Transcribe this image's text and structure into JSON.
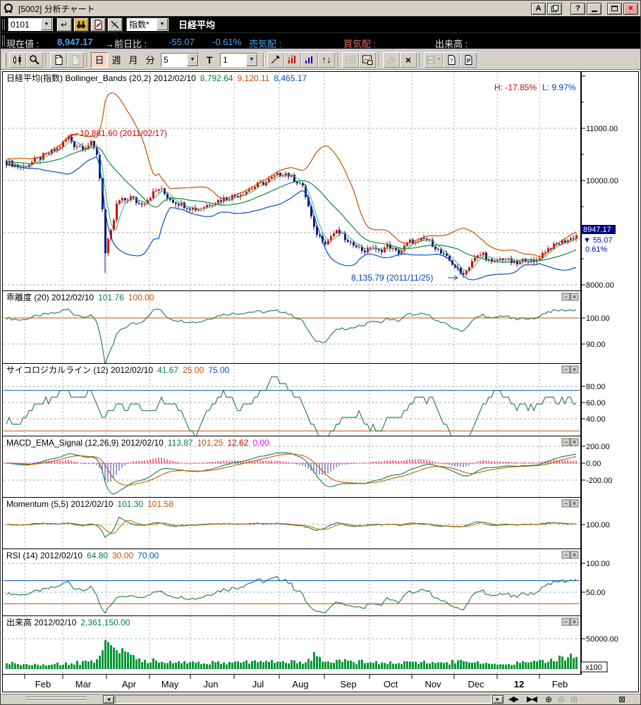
{
  "window": {
    "title": "[5002] 分析チャート",
    "buttons": {
      "a": "A",
      "help": "?",
      "close": "×"
    }
  },
  "icons": {
    "dropdown": "▼",
    "return": "↵",
    "updown": "↑↓",
    "left_arrow": "◄",
    "right_arrow": "►",
    "expand": "◀▶",
    "contract": "▶◀",
    "zoom_in": "⊕",
    "zoom_out": "⊖",
    "grid_box": "⊞",
    "close_box": "⊠",
    "minus": "−",
    "times": "×",
    "delete_x": "×"
  },
  "symbol_bar": {
    "code": "0101",
    "category": "指数*",
    "name": "日経平均"
  },
  "quote_bar": {
    "current_label": "現在値 :",
    "current_value": "8,947.17",
    "change_label": "→前日比 :",
    "change_value": "-55.07",
    "change_pct": "-0.61%",
    "ask_label": "売気配 :",
    "bid_label": "買気配 :",
    "volume_label": "出来高 :"
  },
  "toolbar": {
    "period_day": "日",
    "period_week": "週",
    "period_month": "月",
    "period_minute": "分",
    "bars_combo": "5",
    "text_button": "T",
    "interval_combo": "1"
  },
  "colors": {
    "up": "#cc1111",
    "down": "#15157a",
    "band_upper": "#c85000",
    "band_mid": "#0b8a3c",
    "band_fast": "#3cb06a",
    "band_lower": "#0050c0",
    "indicator": "#1a7a4a",
    "signal": "#c06000",
    "hist_pos": "#cc0000",
    "hist_neg": "#3a3aa0",
    "zero": "#ff00ff",
    "volume": "#009933",
    "grid": "#b0b0b0",
    "accent_cyan": "#3fa9f5",
    "bid_red": "#f06a6a"
  },
  "months": [
    "Feb",
    "Mar",
    "Apr",
    "May",
    "Jun",
    "Jul",
    "Aug",
    "Sep",
    "Oct",
    "Nov",
    "Dec",
    "12",
    "Feb"
  ],
  "chart_data": [
    {
      "type": "candlestick",
      "name": "main",
      "header_parts": [
        [
          "日経平均(指数) Bollinger_Bands (20,2) 2012/02/10",
          "#000000"
        ],
        [
          "8,792.64",
          "#008040"
        ],
        [
          "9,120.11",
          "#c85000"
        ],
        [
          "8,465.17",
          "#0050c0"
        ]
      ],
      "yticks": [
        {
          "v": 11000,
          "label": "11000.00"
        },
        {
          "v": 10000,
          "label": "10000.00"
        },
        {
          "v": 9000,
          "label": "9000.00"
        },
        {
          "v": 8000,
          "label": "8000.00"
        }
      ],
      "ylim": [
        7890,
        11880
      ],
      "bollinger": {
        "period": 20,
        "k": 2
      },
      "last_close": 8947.17,
      "high_annotation": {
        "text": "10,881.60 (2011/02/17)",
        "value": 10881.6,
        "color": "#cc0000"
      },
      "low_annotation": {
        "text": "8,135.79 (2011/11/25)",
        "value": 8135.79,
        "color": "#0040c0"
      },
      "range_labels": {
        "high": "H: -17.85%",
        "high_color": "#cc0000",
        "low": "L: 9.97%",
        "low_color": "#0040c0"
      },
      "price_box": {
        "price": "8947.17",
        "change": "▼ 55.07",
        "pct": "0.61%",
        "bg": "#000080",
        "fg": "#0000bb"
      },
      "close_anchors": [
        [
          8,
          10350
        ],
        [
          30,
          10250
        ],
        [
          55,
          10430
        ],
        [
          80,
          10600
        ],
        [
          92,
          10780
        ],
        [
          96,
          10820
        ],
        [
          104,
          10680
        ],
        [
          118,
          10650
        ],
        [
          128,
          10700
        ],
        [
          136,
          10520
        ],
        [
          140,
          10050
        ],
        [
          144,
          9480
        ],
        [
          148,
          8600
        ],
        [
          152,
          8830
        ],
        [
          158,
          9100
        ],
        [
          165,
          9600
        ],
        [
          175,
          9620
        ],
        [
          185,
          9680
        ],
        [
          195,
          9550
        ],
        [
          205,
          9600
        ],
        [
          215,
          9750
        ],
        [
          225,
          9850
        ],
        [
          235,
          9700
        ],
        [
          245,
          9600
        ],
        [
          255,
          9550
        ],
        [
          265,
          9500
        ],
        [
          275,
          9450
        ],
        [
          285,
          9480
        ],
        [
          295,
          9550
        ],
        [
          305,
          9600
        ],
        [
          315,
          9650
        ],
        [
          325,
          9680
        ],
        [
          335,
          9720
        ],
        [
          345,
          9780
        ],
        [
          355,
          9850
        ],
        [
          365,
          9920
        ],
        [
          375,
          9960
        ],
        [
          385,
          10050
        ],
        [
          395,
          10120
        ],
        [
          403,
          10150
        ],
        [
          410,
          10080
        ],
        [
          418,
          10000
        ],
        [
          426,
          9940
        ],
        [
          432,
          9700
        ],
        [
          438,
          9400
        ],
        [
          444,
          9070
        ],
        [
          450,
          8950
        ],
        [
          456,
          8870
        ],
        [
          462,
          8800
        ],
        [
          470,
          8980
        ],
        [
          478,
          9020
        ],
        [
          486,
          8920
        ],
        [
          494,
          8760
        ],
        [
          502,
          8800
        ],
        [
          510,
          8680
        ],
        [
          518,
          8640
        ],
        [
          526,
          8750
        ],
        [
          534,
          8620
        ],
        [
          542,
          8690
        ],
        [
          550,
          8760
        ],
        [
          558,
          8640
        ],
        [
          566,
          8620
        ],
        [
          574,
          8760
        ],
        [
          582,
          8850
        ],
        [
          590,
          8780
        ],
        [
          598,
          8880
        ],
        [
          606,
          8850
        ],
        [
          614,
          8760
        ],
        [
          622,
          8620
        ],
        [
          630,
          8540
        ],
        [
          638,
          8440
        ],
        [
          646,
          8320
        ],
        [
          652,
          8220
        ],
        [
          656,
          8160
        ],
        [
          662,
          8320
        ],
        [
          668,
          8460
        ],
        [
          676,
          8540
        ],
        [
          684,
          8600
        ],
        [
          690,
          8500
        ],
        [
          696,
          8420
        ],
        [
          702,
          8450
        ],
        [
          708,
          8490
        ],
        [
          714,
          8520
        ],
        [
          720,
          8460
        ],
        [
          726,
          8420
        ],
        [
          732,
          8400
        ],
        [
          738,
          8440
        ],
        [
          744,
          8500
        ],
        [
          750,
          8460
        ],
        [
          756,
          8420
        ],
        [
          762,
          8520
        ],
        [
          768,
          8600
        ],
        [
          774,
          8680
        ],
        [
          780,
          8720
        ],
        [
          786,
          8760
        ],
        [
          792,
          8800
        ],
        [
          798,
          8830
        ],
        [
          804,
          8860
        ],
        [
          810,
          8900
        ],
        [
          816,
          8947
        ]
      ]
    },
    {
      "type": "line",
      "name": "kairi",
      "header_parts": [
        [
          "乖離度 (20) 2012/02/10",
          "#000000"
        ],
        [
          "101.76",
          "#008040"
        ],
        [
          "100.00",
          "#c85000"
        ]
      ],
      "yticks": [
        {
          "v": 100,
          "label": "100.00"
        },
        {
          "v": 90,
          "label": "90.00"
        }
      ],
      "ref_lines": [
        {
          "v": 100,
          "color": "#c85000"
        }
      ]
    },
    {
      "type": "line",
      "name": "psych",
      "header_parts": [
        [
          "サイコロジカルライン (12) 2012/02/10",
          "#000000"
        ],
        [
          "41.67",
          "#008040"
        ],
        [
          "25.00",
          "#c85000"
        ],
        [
          "75.00",
          "#0050c0"
        ]
      ],
      "yticks": [
        {
          "v": 80,
          "label": "80.00"
        },
        {
          "v": 60,
          "label": "60.00"
        },
        {
          "v": 40,
          "label": "40.00"
        }
      ],
      "ref_lines": [
        {
          "v": 75,
          "color": "#0050c0"
        },
        {
          "v": 25,
          "color": "#c85000"
        }
      ]
    },
    {
      "type": "macd",
      "name": "macd",
      "header_parts": [
        [
          "MACD_EMA_Signal (12,26,9) 2012/02/10",
          "#000000"
        ],
        [
          "113.87",
          "#008040"
        ],
        [
          "101.25",
          "#c85000"
        ],
        [
          "12.62",
          "#cc0000"
        ],
        [
          "0.00",
          "#ff00ff"
        ]
      ],
      "yticks": [
        {
          "v": 200,
          "label": "200.00"
        },
        {
          "v": 0,
          "label": "0.00"
        },
        {
          "v": -200,
          "label": "-200.00"
        }
      ],
      "ref_lines": []
    },
    {
      "type": "line2",
      "name": "mom",
      "header_parts": [
        [
          "Momentum (5,5) 2012/02/10",
          "#000000"
        ],
        [
          "101.30",
          "#008040"
        ],
        [
          "101.58",
          "#c85000"
        ]
      ],
      "yticks": [
        {
          "v": 100,
          "label": "100.00"
        }
      ],
      "ref_lines": []
    },
    {
      "type": "rsi",
      "name": "rsi",
      "header_parts": [
        [
          "RSI (14) 2012/02/10",
          "#000000"
        ],
        [
          "64.80",
          "#008040"
        ],
        [
          "30.00",
          "#c85000"
        ],
        [
          "70.00",
          "#0050c0"
        ]
      ],
      "yticks": [
        {
          "v": 100,
          "label": "100.00"
        },
        {
          "v": 50,
          "label": "50.00"
        }
      ],
      "ref_lines": [
        {
          "v": 70,
          "color": "#0050c0"
        },
        {
          "v": 30,
          "color": "#c85000"
        }
      ]
    },
    {
      "type": "volume",
      "name": "vol",
      "header_parts": [
        [
          "出来高 2012/02/10",
          "#000000"
        ],
        [
          "2,361,150.00",
          "#008040"
        ]
      ],
      "yticks": [
        {
          "v": 50000,
          "label": "50000.00"
        }
      ],
      "unit_label": "x100",
      "volume_anchors": [
        [
          8,
          9000
        ],
        [
          40,
          8200
        ],
        [
          70,
          8600
        ],
        [
          100,
          10000
        ],
        [
          120,
          11000
        ],
        [
          134,
          13000
        ],
        [
          140,
          22000
        ],
        [
          144,
          30000
        ],
        [
          148,
          48000
        ],
        [
          152,
          45000
        ],
        [
          156,
          40000
        ],
        [
          162,
          34000
        ],
        [
          170,
          27000
        ],
        [
          180,
          22000
        ],
        [
          192,
          17000
        ],
        [
          205,
          14500
        ],
        [
          220,
          13000
        ],
        [
          240,
          11500
        ],
        [
          260,
          10500
        ],
        [
          280,
          9800
        ],
        [
          300,
          10500
        ],
        [
          320,
          9600
        ],
        [
          340,
          10200
        ],
        [
          360,
          11500
        ],
        [
          380,
          12500
        ],
        [
          400,
          12000
        ],
        [
          415,
          11000
        ],
        [
          428,
          13000
        ],
        [
          436,
          19000
        ],
        [
          444,
          23000
        ],
        [
          452,
          18000
        ],
        [
          462,
          15000
        ],
        [
          475,
          13500
        ],
        [
          490,
          12500
        ],
        [
          505,
          12000
        ],
        [
          520,
          11000
        ],
        [
          535,
          10500
        ],
        [
          550,
          10000
        ],
        [
          565,
          9600
        ],
        [
          580,
          9800
        ],
        [
          595,
          10500
        ],
        [
          610,
          11000
        ],
        [
          625,
          10000
        ],
        [
          640,
          11500
        ],
        [
          652,
          15000
        ],
        [
          660,
          13000
        ],
        [
          672,
          10500
        ],
        [
          685,
          9500
        ],
        [
          698,
          8500
        ],
        [
          710,
          8200
        ],
        [
          722,
          8800
        ],
        [
          734,
          9500
        ],
        [
          746,
          10500
        ],
        [
          758,
          11500
        ],
        [
          770,
          13000
        ],
        [
          780,
          14500
        ],
        [
          790,
          16500
        ],
        [
          800,
          19000
        ],
        [
          808,
          21500
        ],
        [
          816,
          23500
        ]
      ]
    }
  ]
}
